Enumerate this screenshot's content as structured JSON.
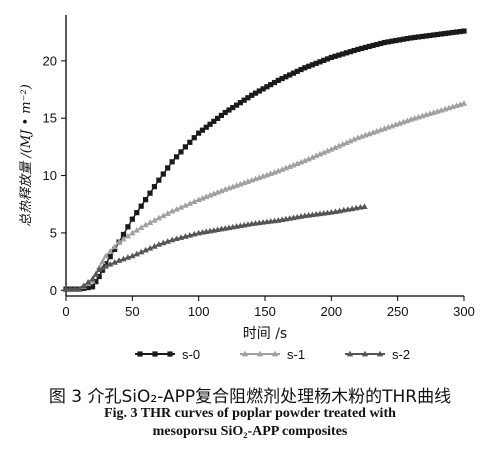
{
  "chart_data": {
    "type": "line",
    "xlabel": "时间 /s",
    "ylabel": "总热释放量 /(MJ • m⁻²)",
    "xlim": [
      0,
      300
    ],
    "ylim": [
      -0.5,
      24
    ],
    "xticks": [
      0,
      50,
      100,
      150,
      200,
      250,
      300
    ],
    "yticks": [
      0,
      5,
      10,
      15,
      20
    ],
    "grid": false,
    "legend_position": "bottom",
    "series": [
      {
        "name": "s-0",
        "color": "#1a1a1a",
        "marker": "square",
        "x": [
          0,
          10,
          20,
          25,
          30,
          40,
          50,
          60,
          70,
          80,
          90,
          100,
          120,
          140,
          160,
          180,
          200,
          220,
          240,
          260,
          280,
          300
        ],
        "y": [
          0.1,
          0.1,
          0.3,
          1.2,
          2.3,
          4.2,
          6.2,
          7.9,
          9.6,
          11.2,
          12.5,
          13.7,
          15.5,
          17.0,
          18.3,
          19.4,
          20.3,
          21.0,
          21.6,
          22.0,
          22.3,
          22.6
        ]
      },
      {
        "name": "s-1",
        "color": "#a0a0a0",
        "marker": "triangle",
        "x": [
          0,
          10,
          20,
          25,
          30,
          40,
          50,
          60,
          70,
          80,
          90,
          100,
          120,
          140,
          160,
          180,
          200,
          220,
          240,
          260,
          280,
          300
        ],
        "y": [
          0.1,
          0.1,
          0.8,
          2.0,
          3.0,
          4.2,
          5.0,
          5.7,
          6.3,
          6.9,
          7.4,
          7.9,
          8.8,
          9.6,
          10.4,
          11.3,
          12.3,
          13.3,
          14.1,
          14.9,
          15.6,
          16.3
        ]
      },
      {
        "name": "s-2",
        "color": "#555555",
        "marker": "triangle",
        "x": [
          0,
          10,
          20,
          25,
          30,
          40,
          50,
          60,
          70,
          80,
          90,
          100,
          120,
          140,
          160,
          180,
          200,
          225
        ],
        "y": [
          0.1,
          0.1,
          1.0,
          1.8,
          2.1,
          2.6,
          3.0,
          3.5,
          4.0,
          4.4,
          4.7,
          5.0,
          5.4,
          5.8,
          6.1,
          6.5,
          6.8,
          7.3
        ]
      }
    ]
  },
  "caption": {
    "cn": "图 3   介孔SiO₂-APP复合阻燃剂处理杨木粉的THR曲线",
    "en_line1": "Fig. 3    THR curves of poplar powder treated with",
    "en_line2": "mesoporsu SiO₂-APP composites"
  }
}
